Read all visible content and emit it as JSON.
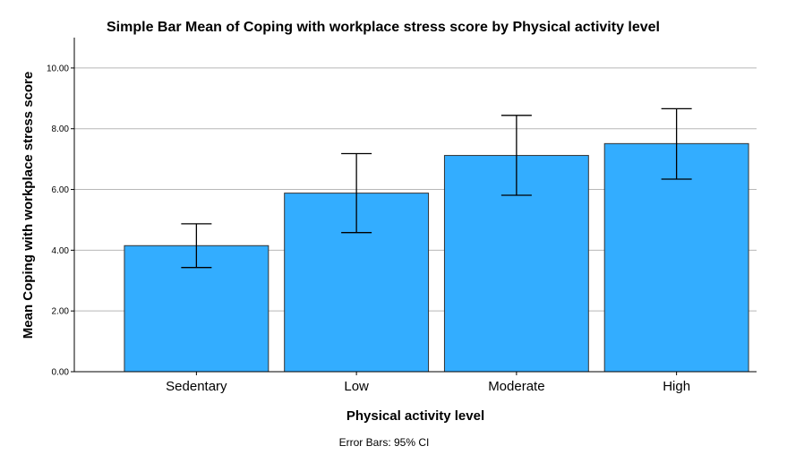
{
  "chart_data": {
    "type": "bar",
    "title": "Simple Bar Mean of Coping with workplace stress score  by Physical activity level",
    "xlabel": "Physical activity level",
    "ylabel": "Mean Coping with workplace stress score",
    "categories": [
      "Sedentary",
      "Low",
      "Moderate",
      "High"
    ],
    "values": [
      4.15,
      5.88,
      7.12,
      7.51
    ],
    "ci_low": [
      3.43,
      4.58,
      5.81,
      6.34
    ],
    "ci_high": [
      4.87,
      7.18,
      8.44,
      8.66
    ],
    "ylim": [
      0,
      11
    ],
    "yticks": [
      "0.00",
      "2.00",
      "4.00",
      "6.00",
      "8.00",
      "10.00"
    ],
    "ytick_values": [
      0,
      2,
      4,
      6,
      8,
      10
    ],
    "grid": true,
    "bar_color": "#33adff",
    "footnote": "Error Bars: 95% CI"
  }
}
